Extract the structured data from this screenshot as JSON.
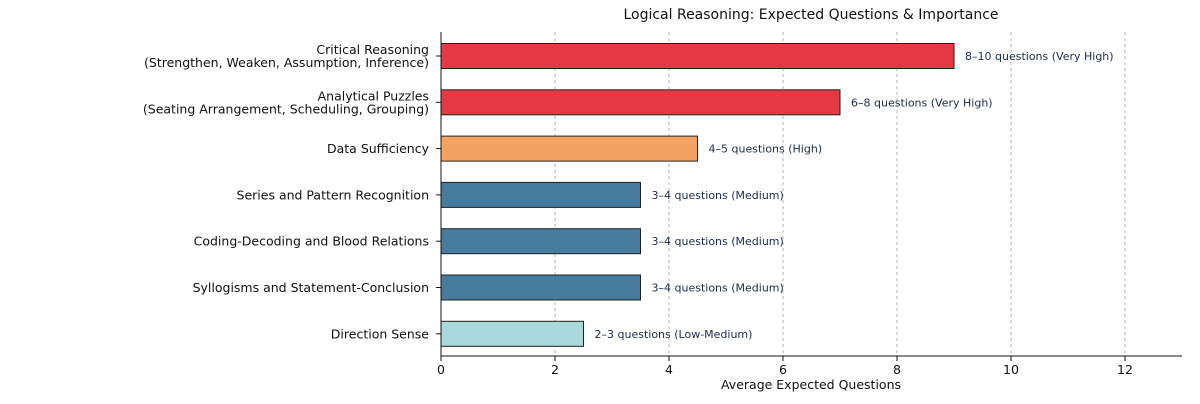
{
  "chart_data": {
    "type": "bar",
    "orientation": "horizontal",
    "title": "Logical Reasoning: Expected Questions & Importance",
    "xlabel": "Average Expected Questions",
    "ylabel": "",
    "xlim": [
      0,
      13
    ],
    "xticks": [
      0,
      2,
      4,
      6,
      8,
      10,
      12
    ],
    "grid": "vertical dashed",
    "categories": [
      {
        "label": [
          "Critical Reasoning",
          "(Strengthen, Weaken, Assumption, Inference)"
        ],
        "value": 9,
        "annotation": "8–10 questions (Very High)",
        "color": "#e63946"
      },
      {
        "label": [
          "Analytical Puzzles",
          "(Seating Arrangement, Scheduling, Grouping)"
        ],
        "value": 7,
        "annotation": "6–8 questions (Very High)",
        "color": "#e63946"
      },
      {
        "label": [
          "Data Sufficiency"
        ],
        "value": 4.5,
        "annotation": "4–5 questions (High)",
        "color": "#f4a261"
      },
      {
        "label": [
          "Series and Pattern Recognition"
        ],
        "value": 3.5,
        "annotation": "3–4 questions (Medium)",
        "color": "#457b9d"
      },
      {
        "label": [
          "Coding-Decoding and Blood Relations"
        ],
        "value": 3.5,
        "annotation": "3–4 questions (Medium)",
        "color": "#457b9d"
      },
      {
        "label": [
          "Syllogisms and Statement-Conclusion"
        ],
        "value": 3.5,
        "annotation": "3–4 questions (Medium)",
        "color": "#457b9d"
      },
      {
        "label": [
          "Direction Sense"
        ],
        "value": 2.5,
        "annotation": "2–3 questions (Low-Medium)",
        "color": "#a8dadc"
      }
    ]
  }
}
